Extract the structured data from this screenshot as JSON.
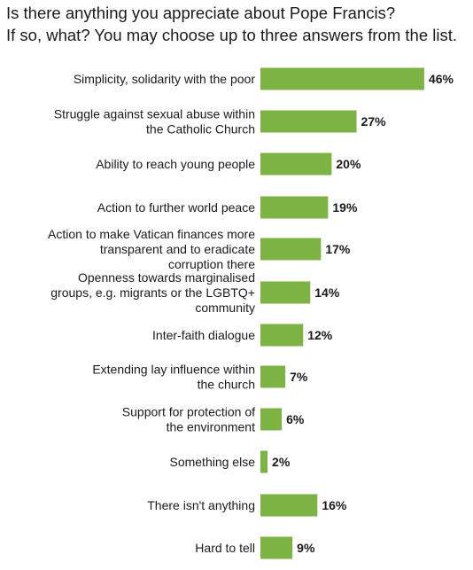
{
  "title_lines": [
    "Is there anything you appreciate about Pope Francis?",
    "If so, what? You may choose up to three answers from the list."
  ],
  "colors": {
    "bar": "#7cb342",
    "text": "#1a1a1a"
  },
  "chart_data": {
    "type": "bar",
    "orientation": "horizontal",
    "title": "Is there anything you appreciate about Pope Francis? If so, what? You may choose up to three answers from the list.",
    "unit": "%",
    "categories": [
      [
        "Simplicity, solidarity with the poor"
      ],
      [
        "Struggle against sexual abuse within",
        "the Catholic Church"
      ],
      [
        "Ability to reach young people"
      ],
      [
        "Action to further world peace"
      ],
      [
        "Action to make Vatican finances more",
        "transparent and to eradicate",
        "corruption there"
      ],
      [
        "Openness towards marginalised",
        "groups, e.g. migrants or the LGBTQ+",
        "community"
      ],
      [
        "Inter-faith dialogue"
      ],
      [
        "Extending lay influence within",
        "the church"
      ],
      [
        "Support for protection of",
        "the environment"
      ],
      [
        "Something else"
      ],
      [
        "There isn't anything"
      ],
      [
        "Hard to tell"
      ]
    ],
    "values": [
      46,
      27,
      20,
      19,
      17,
      14,
      12,
      7,
      6,
      2,
      16,
      9
    ],
    "value_labels": [
      "46%",
      "27%",
      "20%",
      "19%",
      "17%",
      "14%",
      "12%",
      "7%",
      "6%",
      "2%",
      "16%",
      "9%"
    ],
    "grid": false,
    "legend": "none"
  }
}
